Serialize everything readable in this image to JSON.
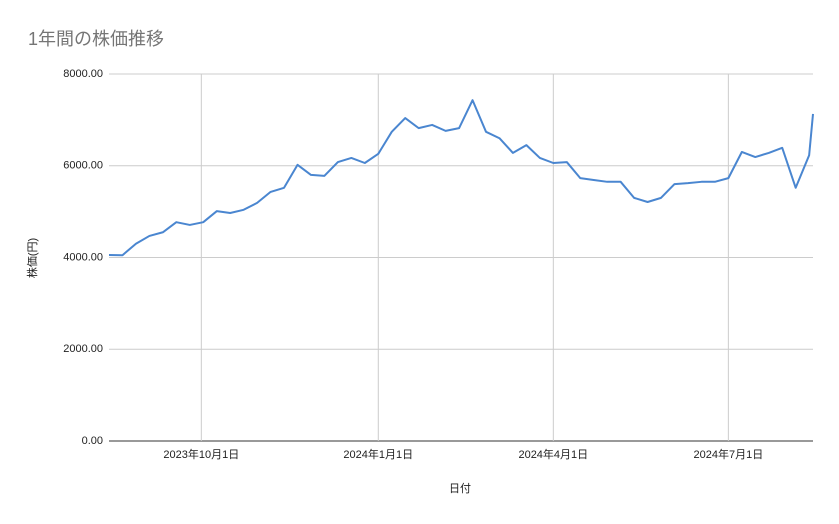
{
  "chart_data": {
    "type": "line",
    "title": "1年間の株価推移",
    "xlabel": "日付",
    "ylabel": "株価(円)",
    "x": [
      "2023-08-14",
      "2023-08-21",
      "2023-08-28",
      "2023-09-04",
      "2023-09-11",
      "2023-09-18",
      "2023-09-25",
      "2023-10-02",
      "2023-10-09",
      "2023-10-16",
      "2023-10-23",
      "2023-10-30",
      "2023-11-06",
      "2023-11-13",
      "2023-11-20",
      "2023-11-27",
      "2023-12-04",
      "2023-12-11",
      "2023-12-18",
      "2023-12-25",
      "2024-01-01",
      "2024-01-08",
      "2024-01-15",
      "2024-01-22",
      "2024-01-29",
      "2024-02-05",
      "2024-02-12",
      "2024-02-19",
      "2024-02-26",
      "2024-03-04",
      "2024-03-11",
      "2024-03-18",
      "2024-03-25",
      "2024-04-01",
      "2024-04-08",
      "2024-04-15",
      "2024-04-22",
      "2024-04-29",
      "2024-05-06",
      "2024-05-13",
      "2024-05-20",
      "2024-05-27",
      "2024-06-03",
      "2024-06-10",
      "2024-06-17",
      "2024-06-24",
      "2024-07-01",
      "2024-07-08",
      "2024-07-15",
      "2024-07-22",
      "2024-07-29",
      "2024-08-05",
      "2024-08-12",
      "2024-08-14"
    ],
    "series": [
      {
        "name": "株価",
        "color": "#4a86d0",
        "values": [
          4055,
          4050,
          4300,
          4470,
          4550,
          4770,
          4710,
          4770,
          5010,
          4970,
          5040,
          5190,
          5430,
          5520,
          6020,
          5800,
          5780,
          6080,
          6170,
          6060,
          6260,
          6740,
          7040,
          6820,
          6890,
          6760,
          6820,
          7430,
          6740,
          6600,
          6280,
          6450,
          6170,
          6060,
          6080,
          5730,
          5690,
          5650,
          5650,
          5300,
          5210,
          5300,
          5600,
          5620,
          5650,
          5650,
          5730,
          6300,
          6190,
          6280,
          6390,
          5520,
          6230,
          7130
        ]
      }
    ],
    "xlim": [
      "2023-08-14",
      "2024-08-14"
    ],
    "xticks": [
      {
        "value": "2023-10-01",
        "label": "2023年10月1日"
      },
      {
        "value": "2024-01-01",
        "label": "2024年1月1日"
      },
      {
        "value": "2024-04-01",
        "label": "2024年4月1日"
      },
      {
        "value": "2024-07-01",
        "label": "2024年7月1日"
      }
    ],
    "ylim": [
      0,
      8000
    ],
    "yticks": [
      {
        "value": 0,
        "label": "0.00"
      },
      {
        "value": 2000,
        "label": "2000.00"
      },
      {
        "value": 4000,
        "label": "4000.00"
      },
      {
        "value": 6000,
        "label": "6000.00"
      },
      {
        "value": 8000,
        "label": "8000.00"
      }
    ],
    "grid": true
  }
}
